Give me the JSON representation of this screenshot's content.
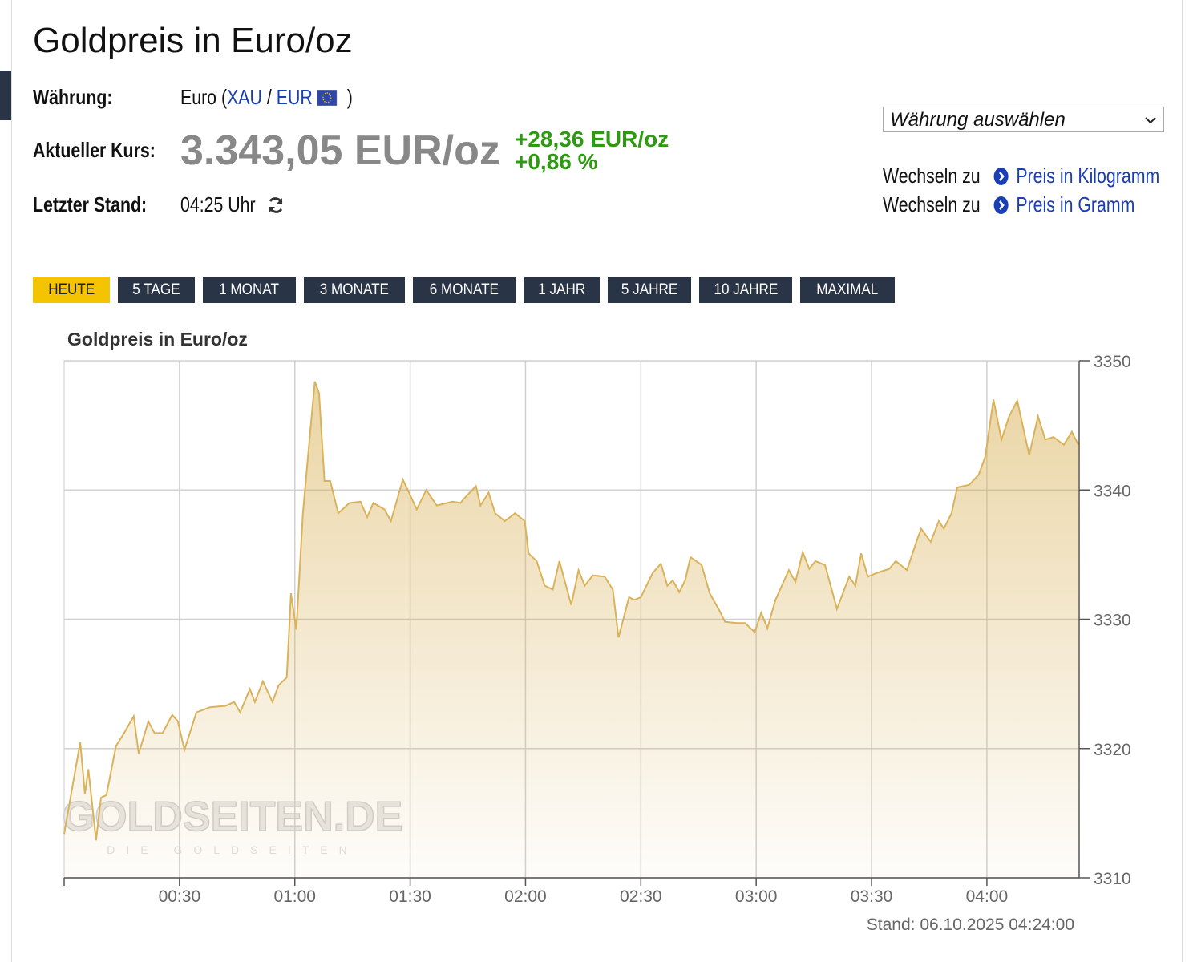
{
  "header": {
    "title": "Goldpreis in Euro/oz",
    "currency_label": "Währung:",
    "currency_name": "Euro",
    "paren_open": "(",
    "base": "XAU",
    "separator": "/",
    "quote": "EUR",
    "paren_close": ")",
    "price_label": "Aktueller Kurs:",
    "price": "3.343,05 EUR/oz",
    "change_abs": "+28,36 EUR/oz",
    "change_pct": "+0,86 %",
    "last_label": "Letzter Stand:",
    "last_value": "04:25 Uhr"
  },
  "sidebar": {
    "select": "Währung auswählen",
    "links": [
      {
        "prefix": "Wechseln zu",
        "label": "Preis in Kilogramm"
      },
      {
        "prefix": "Wechseln zu",
        "label": "Preis in Gramm"
      }
    ]
  },
  "tabs": [
    "HEUTE",
    "5 TAGE",
    "1 MONAT",
    "3 MONATE",
    "6 MONATE",
    "1 JAHR",
    "5 JAHRE",
    "10 JAHRE",
    "MAXIMAL"
  ],
  "chart_data": {
    "type": "area",
    "title": "Goldpreis in Euro/oz",
    "footnote": "Stand: 06.10.2025 04:24:00",
    "watermark": "GOLDSEITEN.DE",
    "watermark_sub": "DIE GOLDSEITEN",
    "xlim": [
      0,
      264
    ],
    "xticks": [
      {
        "value": 30,
        "label": "00:30"
      },
      {
        "value": 60,
        "label": "01:00"
      },
      {
        "value": 90,
        "label": "01:30"
      },
      {
        "value": 120,
        "label": "02:00"
      },
      {
        "value": 150,
        "label": "02:30"
      },
      {
        "value": 180,
        "label": "03:00"
      },
      {
        "value": 210,
        "label": "03:30"
      },
      {
        "value": 240,
        "label": "04:00"
      }
    ],
    "ylim": [
      3310,
      3350
    ],
    "yticks": [
      3310,
      3320,
      3330,
      3340,
      3350
    ],
    "y_axis_side": "right",
    "grid": true,
    "x": [
      0,
      4.2,
      5.4,
      6.3,
      8.3,
      9.6,
      11,
      13.5,
      15.6,
      18.1,
      19.4,
      21.9,
      23.5,
      25.6,
      28.1,
      29.6,
      31.3,
      34.4,
      37.9,
      42,
      44.2,
      45.8,
      48.3,
      49.6,
      51.7,
      54.2,
      55.8,
      57.9,
      59,
      60.4,
      62.1,
      63.8,
      65.2,
      66.3,
      67.7,
      69.2,
      71.3,
      74.2,
      77.1,
      78.8,
      80.4,
      83.3,
      85,
      88.1,
      90,
      91.7,
      94.2,
      96.9,
      101,
      103.1,
      104.2,
      107.1,
      108.3,
      110.4,
      112.1,
      114.6,
      117.3,
      119.8,
      120.8,
      122.9,
      125,
      127.1,
      128.8,
      131.9,
      133.8,
      135.4,
      137.5,
      140.6,
      142.7,
      144.2,
      146.9,
      148.3,
      150,
      153.1,
      155.2,
      156.9,
      158.3,
      160,
      161.5,
      162.9,
      165.8,
      167.9,
      170.4,
      171.9,
      175,
      177.1,
      179.6,
      181.3,
      182.9,
      185,
      188.5,
      190.2,
      192.1,
      193.8,
      195.4,
      197.9,
      201,
      204.2,
      205.8,
      207.3,
      209,
      211.5,
      214.6,
      216.3,
      219.2,
      221.9,
      222.9,
      225.4,
      227.5,
      228.8,
      230.8,
      232.3,
      235.4,
      237.9,
      239.6,
      241.7,
      243.8,
      245.8,
      247.9,
      251,
      253.3,
      255.2,
      257.3,
      260,
      262.1,
      263.8
    ],
    "series": [
      {
        "name": "Goldpreis",
        "color": "#d9b25a",
        "values": [
          3313.4,
          3320.5,
          3316.5,
          3318.4,
          3312.9,
          3316.2,
          3316.4,
          3320.2,
          3321.2,
          3322.5,
          3319.6,
          3322.1,
          3321.2,
          3321.2,
          3322.6,
          3322.1,
          3319.9,
          3322.8,
          3323.2,
          3323.3,
          3323.6,
          3322.8,
          3324.6,
          3323.6,
          3325.2,
          3323.6,
          3324.9,
          3325.5,
          3332,
          3329.2,
          3338.2,
          3343.8,
          3348.4,
          3347.5,
          3340.7,
          3340.7,
          3338.2,
          3339,
          3339.1,
          3337.9,
          3339,
          3338.5,
          3337.6,
          3340.8,
          3339.6,
          3338.5,
          3340,
          3338.8,
          3339.1,
          3339,
          3339.4,
          3340.3,
          3338.8,
          3339.8,
          3338.2,
          3337.6,
          3338.2,
          3337.6,
          3335.1,
          3334.5,
          3332.6,
          3332.3,
          3334.5,
          3331.1,
          3333.8,
          3332.6,
          3333.4,
          3333.3,
          3332.3,
          3328.6,
          3331.7,
          3331.5,
          3331.7,
          3333.6,
          3334.3,
          3332.6,
          3333,
          3332.1,
          3333,
          3334.8,
          3334.2,
          3332,
          3330.7,
          3329.8,
          3329.7,
          3329.7,
          3329,
          3330.5,
          3329.3,
          3331.5,
          3333.8,
          3332.9,
          3335.2,
          3333.9,
          3334.5,
          3334.2,
          3330.8,
          3333.3,
          3332.6,
          3335.1,
          3333.3,
          3333.6,
          3333.9,
          3334.5,
          3333.8,
          3336.2,
          3337,
          3336,
          3337.6,
          3337,
          3338.2,
          3340.2,
          3340.4,
          3341.2,
          3342.6,
          3347,
          3343.9,
          3345.7,
          3346.9,
          3342.7,
          3345.7,
          3343.9,
          3344.1,
          3343.5,
          3344.5,
          3343.5
        ]
      }
    ]
  }
}
